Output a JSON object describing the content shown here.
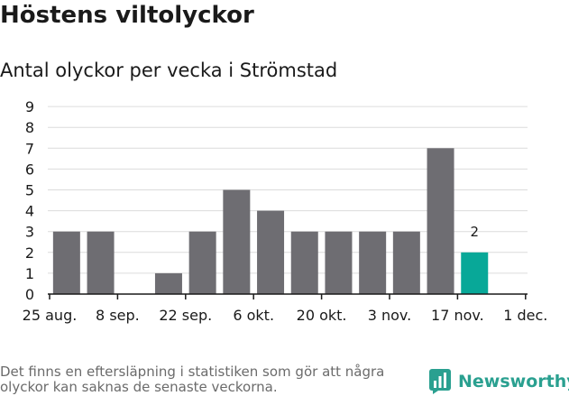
{
  "title": "Höstens viltolyckor",
  "subtitle": "Antal olyckor per vecka i Strömstad",
  "footnote": "Det finns en eftersläpning i statistiken som gör att några olyckor kan saknas de senaste veckorna.",
  "brand": "Newsworthy",
  "colors": {
    "bar": "#6e6d72",
    "highlight": "#08a898",
    "grid": "#dcdcdc",
    "axis": "#1a1a1a",
    "text": "#1a1a1a",
    "brand": "#2aa090"
  },
  "chart_data": {
    "type": "bar",
    "title": "Höstens viltolyckor",
    "subtitle": "Antal olyckor per vecka i Strömstad",
    "x_tick_labels": [
      "25 aug.",
      "8 sep.",
      "22 sep.",
      "6 okt.",
      "20 okt.",
      "3 nov.",
      "17 nov.",
      "1 dec."
    ],
    "y_ticks": [
      0,
      1,
      2,
      3,
      4,
      5,
      6,
      7,
      8,
      9
    ],
    "ylim": [
      0,
      9
    ],
    "grid": true,
    "values": [
      3,
      3,
      0,
      1,
      3,
      5,
      4,
      3,
      3,
      3,
      3,
      7,
      2
    ],
    "highlight_index": 12,
    "data_labels": [
      {
        "index": 12,
        "text": "2"
      }
    ]
  }
}
